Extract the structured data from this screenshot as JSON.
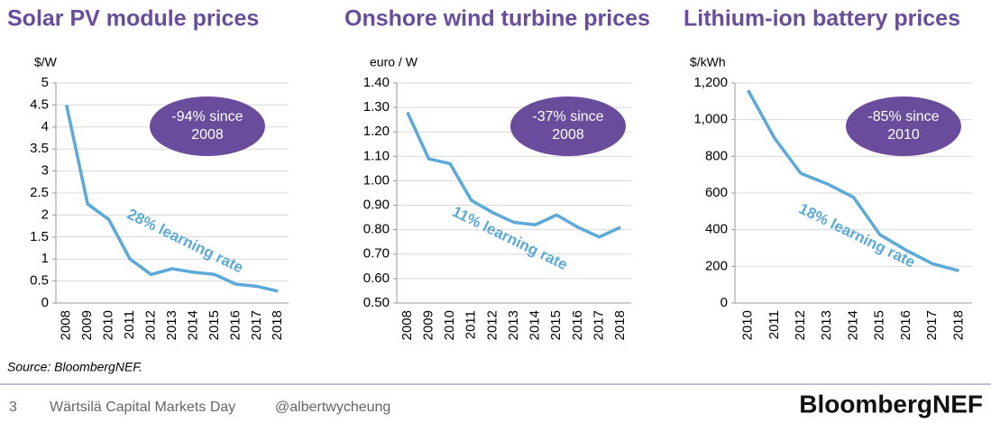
{
  "chart_data": [
    {
      "type": "line",
      "title": "Solar PV module prices",
      "y_label": "$/W",
      "categories": [
        "2008",
        "2009",
        "2010",
        "2011",
        "2012",
        "2013",
        "2014",
        "2015",
        "2016",
        "2017",
        "2018"
      ],
      "values": [
        4.5,
        2.25,
        1.9,
        1.0,
        0.65,
        0.78,
        0.7,
        0.65,
        0.43,
        0.38,
        0.27
      ],
      "color": "#5aa9d8",
      "ylim": [
        0,
        5
      ],
      "yticks": [
        0,
        0.5,
        1,
        1.5,
        2,
        2.5,
        3,
        3.5,
        4,
        4.5,
        5
      ],
      "grid": true,
      "callout": "-94% since 2008",
      "note": "28% learning rate"
    },
    {
      "type": "line",
      "title": "Onshore wind turbine prices",
      "y_label": "euro / W",
      "categories": [
        "2008",
        "2009",
        "2010",
        "2011",
        "2012",
        "2013",
        "2014",
        "2015",
        "2016",
        "2017",
        "2018"
      ],
      "values": [
        1.28,
        1.09,
        1.07,
        0.92,
        0.87,
        0.83,
        0.82,
        0.86,
        0.81,
        0.77,
        0.81
      ],
      "color": "#5aa9d8",
      "ylim": [
        0.5,
        1.4
      ],
      "yticks": [
        {
          "value": 0.5,
          "label": "0.50"
        },
        {
          "value": 0.6,
          "label": "0.60"
        },
        {
          "value": 0.7,
          "label": "0.70"
        },
        {
          "value": 0.8,
          "label": "0.80"
        },
        {
          "value": 0.9,
          "label": "0.90"
        },
        {
          "value": 1.0,
          "label": "1.00"
        },
        {
          "value": 1.1,
          "label": "1.10"
        },
        {
          "value": 1.2,
          "label": "1.20"
        },
        {
          "value": 1.3,
          "label": "1.30"
        },
        {
          "value": 1.4,
          "label": "1.40"
        }
      ],
      "grid": true,
      "callout": "-37% since 2008",
      "note": "11% learning rate"
    },
    {
      "type": "line",
      "title": "Lithium-ion battery prices",
      "y_label": "$/kWh",
      "categories": [
        "2010",
        "2011",
        "2012",
        "2013",
        "2014",
        "2015",
        "2016",
        "2017",
        "2018"
      ],
      "values": [
        1160,
        900,
        707,
        650,
        577,
        373,
        288,
        214,
        176
      ],
      "color": "#5aa9d8",
      "ylim": [
        0,
        1200
      ],
      "yticks": [
        0,
        200,
        400,
        600,
        800,
        {
          "value": 1000,
          "label": "1,000"
        },
        {
          "value": 1200,
          "label": "1,200"
        }
      ],
      "grid": true,
      "callout": "-85% since 2010",
      "note": "18% learning rate"
    }
  ],
  "source": "Source: BloombergNEF.",
  "footer": {
    "page": "3",
    "event": "Wärtsilä Capital Markets Day",
    "handle": "@albertwycheung",
    "brand": "BloombergNEF"
  }
}
